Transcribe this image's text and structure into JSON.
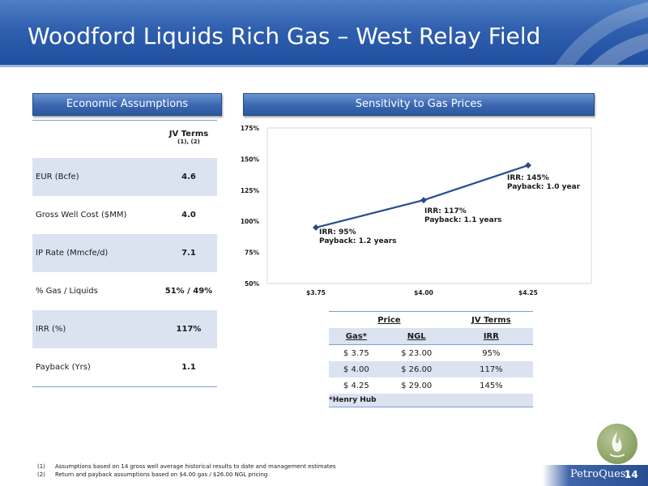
{
  "slide": {
    "title": "Woodford Liquids Rich Gas – West Relay Field",
    "page_number": "14",
    "logo_text": "PetroQuest"
  },
  "economic_assumptions": {
    "header": "Economic Assumptions",
    "column_header": "JV Terms",
    "column_header_note": "(1), (2)",
    "rows": [
      {
        "label": "EUR (Bcfe)",
        "value": "4.6"
      },
      {
        "label": "Gross Well Cost ($MM)",
        "value": "4.0"
      },
      {
        "label": "IP Rate (Mmcfe/d)",
        "value": "7.1"
      },
      {
        "label": "% Gas / Liquids",
        "value": "51% / 49%"
      },
      {
        "label": "IRR (%)",
        "value": "117%"
      },
      {
        "label": "Payback (Yrs)",
        "value": "1.1"
      }
    ]
  },
  "sensitivity": {
    "header": "Sensitivity to Gas Prices"
  },
  "chart_data": {
    "type": "line",
    "categories": [
      "$3.75",
      "$4.00",
      "$4.25"
    ],
    "series": [
      {
        "values": [
          95,
          117,
          145
        ],
        "color": "#2b4c8c"
      }
    ],
    "y_ticks": [
      "50%",
      "75%",
      "100%",
      "125%",
      "150%",
      "175%"
    ],
    "ylim": [
      50,
      175
    ],
    "grid": false,
    "annotations": [
      {
        "line1": "IRR: 95%",
        "line2": "Payback: 1.2 years"
      },
      {
        "line1": "IRR: 117%",
        "line2": "Payback: 1.1 years"
      },
      {
        "line1": "IRR: 145%",
        "line2": "Payback: 1.0 year"
      }
    ]
  },
  "price_table": {
    "group_headers": {
      "price": "Price",
      "jv_terms": "JV Terms"
    },
    "sub_headers": {
      "gas": "Gas*",
      "ngl": "NGL",
      "irr": "IRR"
    },
    "rows": [
      {
        "gas": "$ 3.75",
        "ngl": "$ 23.00",
        "irr": "95%"
      },
      {
        "gas": "$ 4.00",
        "ngl": "$ 26.00",
        "irr": "117%"
      },
      {
        "gas": "$ 4.25",
        "ngl": "$ 29.00",
        "irr": "145%"
      }
    ],
    "note": "*Henry Hub"
  },
  "footnotes": [
    {
      "num": "(1)",
      "text": "Assumptions based on 14 gross well average historical results to date and management estimates"
    },
    {
      "num": "(2)",
      "text": "Return and payback assumptions based on $4.00 gas / $26.00 NGL pricing"
    }
  ]
}
